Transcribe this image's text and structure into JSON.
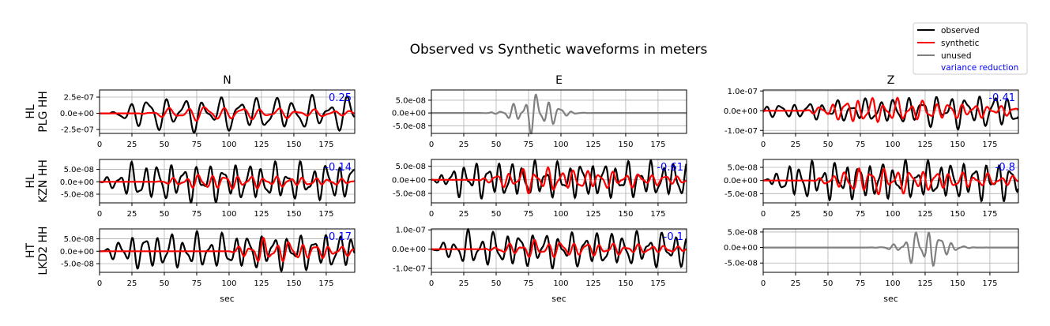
{
  "title": "Observed vs Synthetic waveforms in meters",
  "legend": {
    "entries": [
      {
        "label": "observed",
        "color": "#000000"
      },
      {
        "label": "synthetic",
        "color": "#ff0000"
      },
      {
        "label": "unused",
        "color": "#808080"
      }
    ],
    "note": "variance reduction",
    "note_color": "#0000ff",
    "placement": "top-right"
  },
  "columns": [
    "N",
    "E",
    "Z"
  ],
  "rows": [
    {
      "net": "HL",
      "station": "PLG HH"
    },
    {
      "net": "HL",
      "station": "KZN HH"
    },
    {
      "net": "HT",
      "station": "LKD2 HH"
    }
  ],
  "xlabel": "sec",
  "chart_data": {
    "type": "line",
    "x_range": [
      0,
      197
    ],
    "x_ticks": [
      0,
      25,
      50,
      75,
      100,
      125,
      150,
      175
    ],
    "x_tick_labels": [
      "0",
      "25",
      "50",
      "75",
      "100",
      "125",
      "150",
      "175"
    ],
    "grid": true,
    "panels": [
      {
        "row": 0,
        "col": 0,
        "used": true,
        "vr": "0.25",
        "y_range": [
          -3.1e-07,
          3.6e-07
        ],
        "y_ticks": [
          2.5e-07,
          0,
          -2.5e-07
        ],
        "y_tick_labels": [
          "2.5e-07",
          "0.0e+00",
          "-2.5e-07"
        ],
        "observed": {
          "start": 8,
          "end": 197,
          "amp": 2.8e-07,
          "period": 14,
          "env": "flat",
          "seed": 1
        },
        "synthetic": {
          "start": 30,
          "end": 197,
          "amp": 1.6e-07,
          "period": 14,
          "env": "mid",
          "seed": 2
        }
      },
      {
        "row": 0,
        "col": 1,
        "used": false,
        "vr": "",
        "y_range": [
          -8e-08,
          9e-08
        ],
        "y_ticks": [
          5e-08,
          0,
          -5e-08
        ],
        "y_tick_labels": [
          "5.0e-08",
          "0.0e+00",
          "-5.0e-08"
        ],
        "observed": {
          "start": 33,
          "end": 135,
          "amp": 8.5e-08,
          "period": 9,
          "env": "peak",
          "peak_at": 80,
          "seed": 3
        }
      },
      {
        "row": 0,
        "col": 2,
        "used": true,
        "vr": "-0.41",
        "y_range": [
          -1.15e-07,
          1.05e-07
        ],
        "y_ticks": [
          1e-07,
          0,
          -1e-07
        ],
        "y_tick_labels": [
          "1.0e-07",
          "0.0e+00",
          "-1.0e-07"
        ],
        "observed": {
          "start": 0,
          "end": 197,
          "amp": 9e-08,
          "period": 11,
          "env": "rise",
          "seed": 4
        },
        "synthetic": {
          "start": 32,
          "end": 197,
          "amp": 9e-08,
          "period": 10,
          "env": "mid",
          "seed": 5
        }
      },
      {
        "row": 1,
        "col": 0,
        "used": true,
        "vr": "-0.14",
        "y_range": [
          -8.5e-08,
          9e-08
        ],
        "y_ticks": [
          5e-08,
          0,
          -5e-08
        ],
        "y_tick_labels": [
          "5.0e-08",
          "0.0e+00",
          "-5.0e-08"
        ],
        "observed": {
          "start": 0,
          "end": 197,
          "amp": 8e-08,
          "period": 10,
          "env": "flat",
          "seed": 6
        },
        "synthetic": {
          "start": 42,
          "end": 197,
          "amp": 4.2e-08,
          "period": 10,
          "env": "mid",
          "seed": 7
        }
      },
      {
        "row": 1,
        "col": 1,
        "used": true,
        "vr": "-0.61",
        "y_range": [
          -8.5e-08,
          7.5e-08
        ],
        "y_ticks": [
          5e-08,
          0,
          -5e-08
        ],
        "y_tick_labels": [
          "5.0e-08",
          "0.0e+00",
          "-5.0e-08"
        ],
        "observed": {
          "start": 0,
          "end": 197,
          "amp": 7e-08,
          "period": 9,
          "env": "flat",
          "seed": 8
        },
        "synthetic": {
          "start": 35,
          "end": 197,
          "amp": 6.2e-08,
          "period": 10,
          "env": "mid",
          "seed": 9
        }
      },
      {
        "row": 1,
        "col": 2,
        "used": true,
        "vr": "-0.8",
        "y_range": [
          -8.5e-08,
          8e-08
        ],
        "y_ticks": [
          5e-08,
          0,
          -5e-08
        ],
        "y_tick_labels": [
          "5.0e-08",
          "0.0e+00",
          "-5.0e-08"
        ],
        "observed": {
          "start": 0,
          "end": 197,
          "amp": 7.5e-08,
          "period": 9,
          "env": "flat",
          "seed": 10
        },
        "synthetic": {
          "start": 38,
          "end": 197,
          "amp": 7e-08,
          "period": 10,
          "env": "mid",
          "seed": 11
        }
      },
      {
        "row": 2,
        "col": 0,
        "used": true,
        "vr": "-0.17",
        "y_range": [
          -8.5e-08,
          9e-08
        ],
        "y_ticks": [
          5e-08,
          0,
          -5e-08
        ],
        "y_tick_labels": [
          "5.0e-08",
          "0.0e+00",
          "-5.0e-08"
        ],
        "observed": {
          "start": 0,
          "end": 197,
          "amp": 7.5e-08,
          "period": 10,
          "env": "flat",
          "seed": 12
        },
        "synthetic": {
          "start": 100,
          "end": 197,
          "amp": 6.5e-08,
          "period": 10,
          "env": "mid",
          "seed": 13
        }
      },
      {
        "row": 2,
        "col": 1,
        "used": true,
        "vr": "-0.1",
        "y_range": [
          -1.2e-07,
          1.05e-07
        ],
        "y_ticks": [
          1e-07,
          0,
          -1e-07
        ],
        "y_tick_labels": [
          "1.0e-07",
          "0.0e+00",
          "-1.0e-07"
        ],
        "observed": {
          "start": 0,
          "end": 197,
          "amp": 9.5e-08,
          "period": 10,
          "env": "flat",
          "seed": 14
        },
        "synthetic": {
          "start": 40,
          "end": 197,
          "amp": 6e-08,
          "period": 10,
          "env": "mid",
          "seed": 15
        }
      },
      {
        "row": 2,
        "col": 2,
        "used": false,
        "vr": "",
        "y_range": [
          -8e-08,
          6e-08
        ],
        "y_ticks": [
          5e-08,
          0,
          -5e-08
        ],
        "y_tick_labels": [
          "5.0e-08",
          "0.0e+00",
          "-5.0e-08"
        ],
        "observed": {
          "start": 55,
          "end": 190,
          "amp": 7e-08,
          "period": 9,
          "env": "peak",
          "peak_at": 125,
          "seed": 16
        }
      }
    ]
  }
}
